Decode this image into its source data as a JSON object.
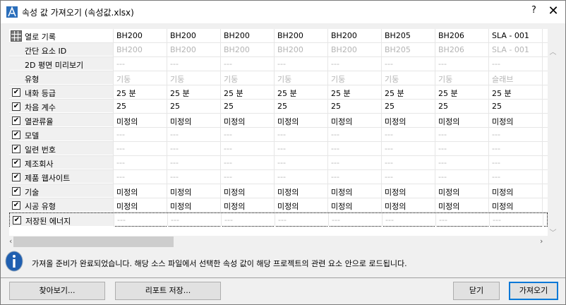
{
  "window": {
    "title": "속성 값 가져오기 (속성값.xlsx)",
    "help": "?",
    "close": "✕"
  },
  "columns": [
    {
      "values": [
        "BH200",
        "BH200",
        "---",
        "기둥",
        "25 분",
        "25",
        "미정의",
        "---",
        "---",
        "---",
        "---",
        "미정의",
        "미정의",
        "---"
      ]
    },
    {
      "values": [
        "BH200",
        "BH200",
        "---",
        "기둥",
        "25 분",
        "25",
        "미정의",
        "---",
        "---",
        "---",
        "---",
        "미정의",
        "미정의",
        "---"
      ]
    },
    {
      "values": [
        "BH200",
        "BH200",
        "---",
        "기둥",
        "25 분",
        "25",
        "미정의",
        "---",
        "---",
        "---",
        "---",
        "미정의",
        "미정의",
        "---"
      ]
    },
    {
      "values": [
        "BH200",
        "BH200",
        "---",
        "기둥",
        "25 분",
        "25",
        "미정의",
        "---",
        "---",
        "---",
        "---",
        "미정의",
        "미정의",
        "---"
      ]
    },
    {
      "values": [
        "BH200",
        "BH200",
        "---",
        "기둥",
        "25 분",
        "25",
        "미정의",
        "---",
        "---",
        "---",
        "---",
        "미정의",
        "미정의",
        "---"
      ]
    },
    {
      "values": [
        "BH205",
        "BH205",
        "---",
        "기둥",
        "25 분",
        "25",
        "미정의",
        "---",
        "---",
        "---",
        "---",
        "미정의",
        "미정의",
        "---"
      ]
    },
    {
      "values": [
        "BH206",
        "BH206",
        "---",
        "기둥",
        "25 분",
        "25",
        "미정의",
        "---",
        "---",
        "---",
        "---",
        "미정의",
        "미정의",
        "---"
      ]
    },
    {
      "values": [
        "SLA - 001",
        "SLA - 001",
        "---",
        "슬래브",
        "25 분",
        "25",
        "미정의",
        "---",
        "---",
        "---",
        "---",
        "미정의",
        "미정의",
        "---"
      ]
    }
  ],
  "rows": [
    {
      "label": "열로 기록",
      "checkbox": null,
      "style": "head"
    },
    {
      "label": "간단 요소 ID",
      "checkbox": null,
      "style": "gray"
    },
    {
      "label": "2D 평면 미리보기",
      "checkbox": null,
      "style": "gray"
    },
    {
      "label": "유형",
      "checkbox": null,
      "style": "gray"
    },
    {
      "label": "내화 등급",
      "checkbox": true
    },
    {
      "label": "차음 계수",
      "checkbox": true
    },
    {
      "label": "열관류율",
      "checkbox": true
    },
    {
      "label": "모델",
      "checkbox": true,
      "style": "gray"
    },
    {
      "label": "일련 번호",
      "checkbox": true,
      "style": "gray"
    },
    {
      "label": "제조회사",
      "checkbox": true,
      "style": "gray"
    },
    {
      "label": "제품 웹사이트",
      "checkbox": true,
      "style": "gray"
    },
    {
      "label": "기술",
      "checkbox": true
    },
    {
      "label": "시공 유형",
      "checkbox": true
    },
    {
      "label": "저장된 에너지",
      "checkbox": true,
      "style": "gray",
      "selected": true
    }
  ],
  "message": "가져올 준비가 완료되었습니다. 해당 소스 파일에서 선택한 속성 값이 해당 프로젝트의 관련 요소 안으로 로드됩니다.",
  "buttons": {
    "browse": "찾아보기...",
    "save_report": "리포트 저장...",
    "close": "닫기",
    "import": "가져오기"
  },
  "colors": {
    "accent": "#0078d7",
    "disabled_text": "#b4b4b4"
  }
}
